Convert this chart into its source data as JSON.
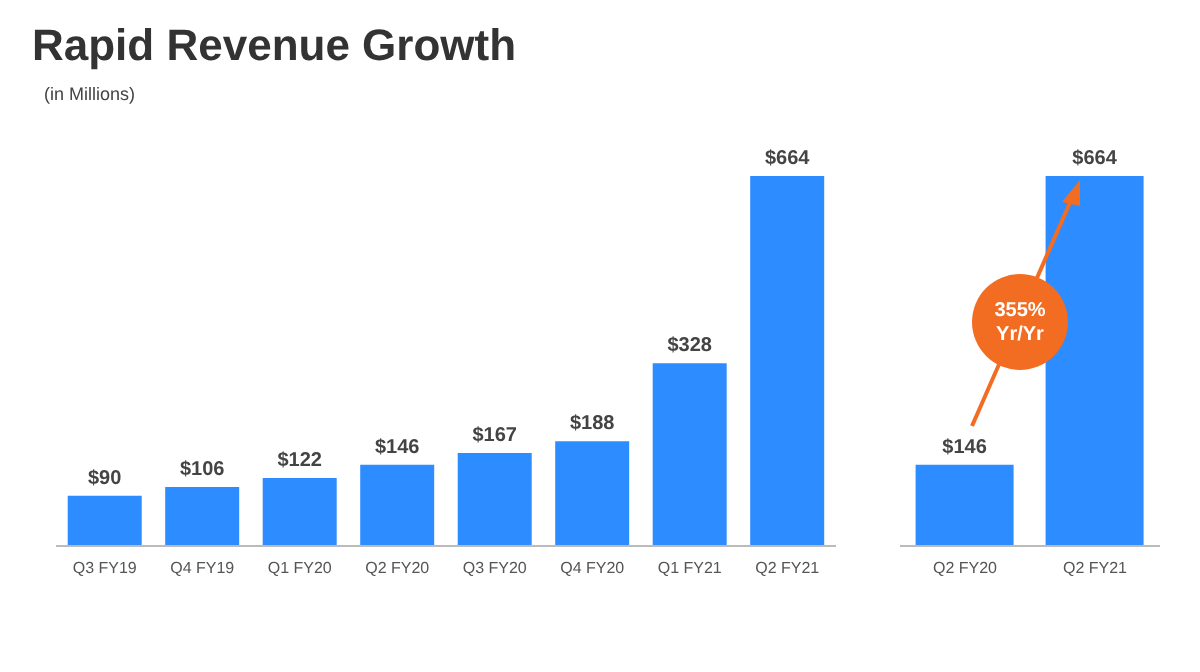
{
  "chart_data": [
    {
      "type": "bar",
      "title": "Rapid Revenue Growth",
      "subtitle": "(in Millions)",
      "categories": [
        "Q3 FY19",
        "Q4 FY19",
        "Q1 FY20",
        "Q2 FY20",
        "Q3 FY20",
        "Q4 FY20",
        "Q1 FY21",
        "Q2 FY21"
      ],
      "values": [
        90,
        106,
        122,
        146,
        167,
        188,
        328,
        664
      ],
      "value_labels": [
        "$90",
        "$106",
        "$122",
        "$146",
        "$167",
        "$188",
        "$328",
        "$664"
      ],
      "color": "#2d8cff"
    },
    {
      "type": "bar",
      "categories": [
        "Q2 FY20",
        "Q2 FY21"
      ],
      "values": [
        146,
        664
      ],
      "value_labels": [
        "$146",
        "$664"
      ],
      "color": "#2d8cff",
      "annotations": [
        "355% Yr/Yr"
      ]
    }
  ]
}
